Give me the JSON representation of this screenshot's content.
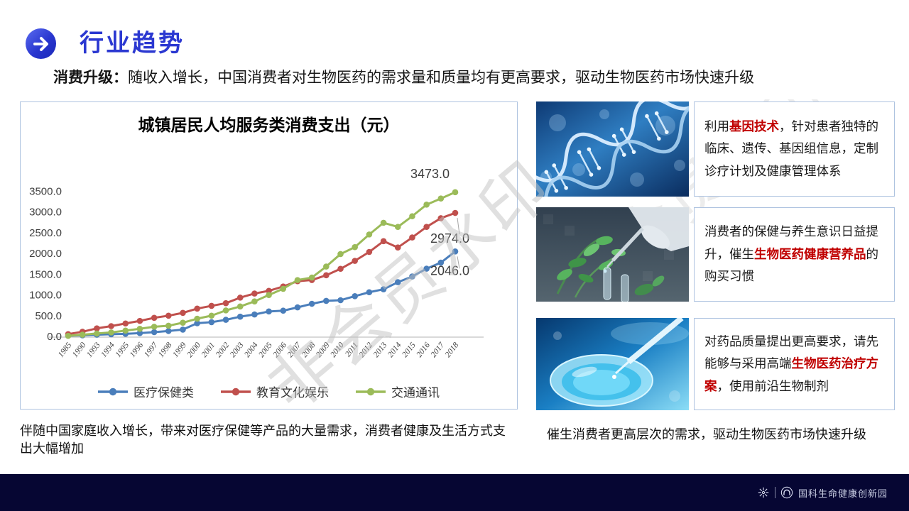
{
  "header": {
    "title": "行业趋势",
    "icon": "arrow-right-icon"
  },
  "subtitle": {
    "parts": [
      {
        "t": "消费升级：",
        "bold": true
      },
      {
        "t": "随收入增长，中国消费者对生物医药的需求量和质量均有更高要求，驱动生物医药市场快速升级"
      }
    ]
  },
  "chart_data": {
    "type": "line",
    "title": "城镇居民人均服务类消费支出（元）",
    "categories": [
      "1985",
      "1990",
      "1993",
      "1994",
      "1995",
      "1996",
      "1997",
      "1998",
      "1999",
      "2000",
      "2001",
      "2002",
      "2003",
      "2004",
      "2005",
      "2006",
      "2007",
      "2008",
      "2009",
      "2010",
      "2011",
      "2012",
      "2013",
      "2014",
      "2015",
      "2016",
      "2017",
      "2018"
    ],
    "series": [
      {
        "name": "医疗保健类",
        "color": "#4a7ebb",
        "values": [
          17,
          26,
          41,
          53,
          62,
          80,
          103,
          130,
          164,
          318,
          343,
          400,
          476,
          528,
          601,
          620,
          699,
          786,
          856,
          872,
          969,
          1064,
          1136,
          1306,
          1443,
          1631,
          1777,
          2046
        ],
        "end_label": "2046.0"
      },
      {
        "name": "教育文化娱乐",
        "color": "#c0504d",
        "values": [
          55,
          112,
          194,
          248,
          312,
          374,
          448,
          499,
          567,
          670,
          736,
          800,
          934,
          1033,
          1098,
          1203,
          1330,
          1358,
          1473,
          1628,
          1820,
          2034,
          2294,
          2142,
          2383,
          2638,
          2847,
          2974
        ],
        "end_label": "2974.0"
      },
      {
        "name": "交通通讯",
        "color": "#9bbb59",
        "values": [
          14,
          41,
          70,
          96,
          140,
          183,
          233,
          257,
          330,
          427,
          500,
          626,
          721,
          843,
          997,
          1147,
          1357,
          1417,
          1683,
          1984,
          2150,
          2455,
          2737,
          2637,
          2895,
          3174,
          3321,
          3473
        ],
        "end_label": "3473.0"
      }
    ],
    "ylim": [
      0,
      3500
    ],
    "yticks": [
      "3500.0",
      "3000.0",
      "2500.0",
      "2000.0",
      "1500.0",
      "1000.0",
      "500.0",
      "0.0"
    ],
    "grid": false,
    "legend_position": "bottom"
  },
  "watermark": {
    "text": "非会员水印"
  },
  "right_blocks": [
    {
      "image": "dna-helix-photo",
      "parts": [
        {
          "t": "利用"
        },
        {
          "t": "基因技术",
          "red": true
        },
        {
          "t": "，针对患者独特的临床、遗传、基因组信息，定制诊疗计划及健康管理体系"
        }
      ]
    },
    {
      "image": "herbal-biotech-photo",
      "parts": [
        {
          "t": "消费者的保健与养生意识日益提升，催生"
        },
        {
          "t": "生物医药健康营养品",
          "red": true
        },
        {
          "t": "的购买习惯"
        }
      ]
    },
    {
      "image": "petri-dish-photo",
      "parts": [
        {
          "t": "对药品质量提出更高要求，请先能够与采用高端"
        },
        {
          "t": "生物医药治疗方案",
          "red": true
        },
        {
          "t": "，使用前沿生物制剂"
        }
      ]
    }
  ],
  "left_caption": "伴随中国家庭收入增长，带来对医疗保健等产品的大量需求，消费者健康及生活方式支出大幅增加",
  "right_caption": "催生消费者更高层次的需求，驱动生物医药市场快速升级",
  "footer": {
    "logo_text": "国科生命健康创新园"
  },
  "colors": {
    "accent_blue": "#2b38d1",
    "accent_red": "#c00000",
    "panel_border": "#aec3e0",
    "footer_bg": "#060633",
    "series_blue": "#4a7ebb",
    "series_red": "#c0504d",
    "series_green": "#9bbb59",
    "watermark_gray": "#c2c2c2"
  }
}
